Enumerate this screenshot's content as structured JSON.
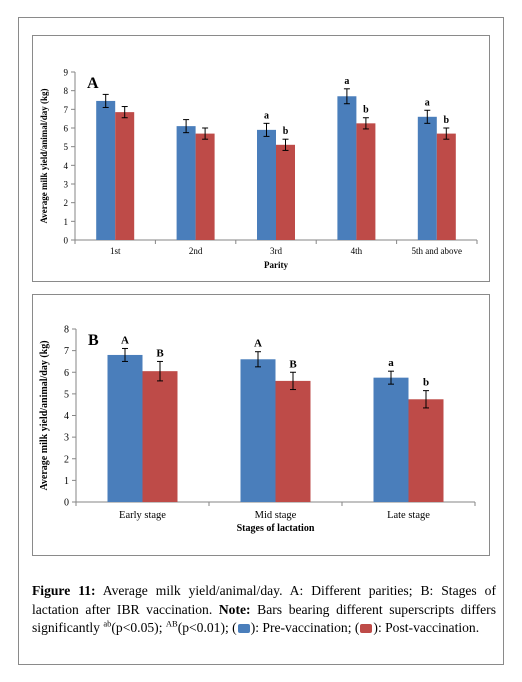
{
  "colors": {
    "pre": "#4a7ebb",
    "post": "#be4b48",
    "error": "#000000"
  },
  "chart_data": [
    {
      "type": "bar",
      "panel_label": "A",
      "xlabel": "Parity",
      "ylabel": "Average milk yield/animal/day (kg)",
      "ylim": [
        0,
        9
      ],
      "yticks": [
        "0",
        "1",
        "2",
        "3",
        "4",
        "5",
        "6",
        "7",
        "8",
        "9"
      ],
      "categories": [
        "1st",
        "2nd",
        "3rd",
        "4th",
        "5th and above"
      ],
      "series": [
        {
          "values": [
            7.45,
            6.1,
            5.9,
            7.7,
            6.6
          ],
          "errors": [
            0.35,
            0.35,
            0.35,
            0.4,
            0.35
          ],
          "labels": [
            "",
            "",
            "a",
            "a",
            "a"
          ]
        },
        {
          "values": [
            6.85,
            5.7,
            5.1,
            6.25,
            5.7
          ],
          "errors": [
            0.3,
            0.3,
            0.3,
            0.3,
            0.3
          ],
          "labels": [
            "",
            "",
            "b",
            "b",
            "b"
          ]
        }
      ]
    },
    {
      "type": "bar",
      "panel_label": "B",
      "xlabel": "Stages of lactation",
      "ylabel": "Average milk yield/animal/day (kg)",
      "ylim": [
        0,
        8
      ],
      "yticks": [
        "0",
        "1",
        "2",
        "3",
        "4",
        "5",
        "6",
        "7",
        "8"
      ],
      "categories": [
        "Early stage",
        "Mid stage",
        "Late stage"
      ],
      "series": [
        {
          "values": [
            6.8,
            6.6,
            5.75
          ],
          "errors": [
            0.3,
            0.35,
            0.3
          ],
          "labels": [
            "A",
            "A",
            "a"
          ]
        },
        {
          "values": [
            6.05,
            5.6,
            4.75
          ],
          "errors": [
            0.45,
            0.4,
            0.4
          ],
          "labels": [
            "B",
            "B",
            "b"
          ]
        }
      ]
    }
  ],
  "caption": {
    "figure_label": "Figure 11:",
    "text1": " Average milk yield/animal/day. A: Different parities; B: Stages of lactation after IBR vaccination. ",
    "note_label": "Note:",
    "text2": " Bars bearing different superscripts differs significantly ",
    "sup1": "ab",
    "text3": "(p<0.05); ",
    "sup2": "AB",
    "text4": "(p<0.01); (",
    "text5": "): Pre-vaccination; (",
    "text6": "): Post-vaccination."
  }
}
